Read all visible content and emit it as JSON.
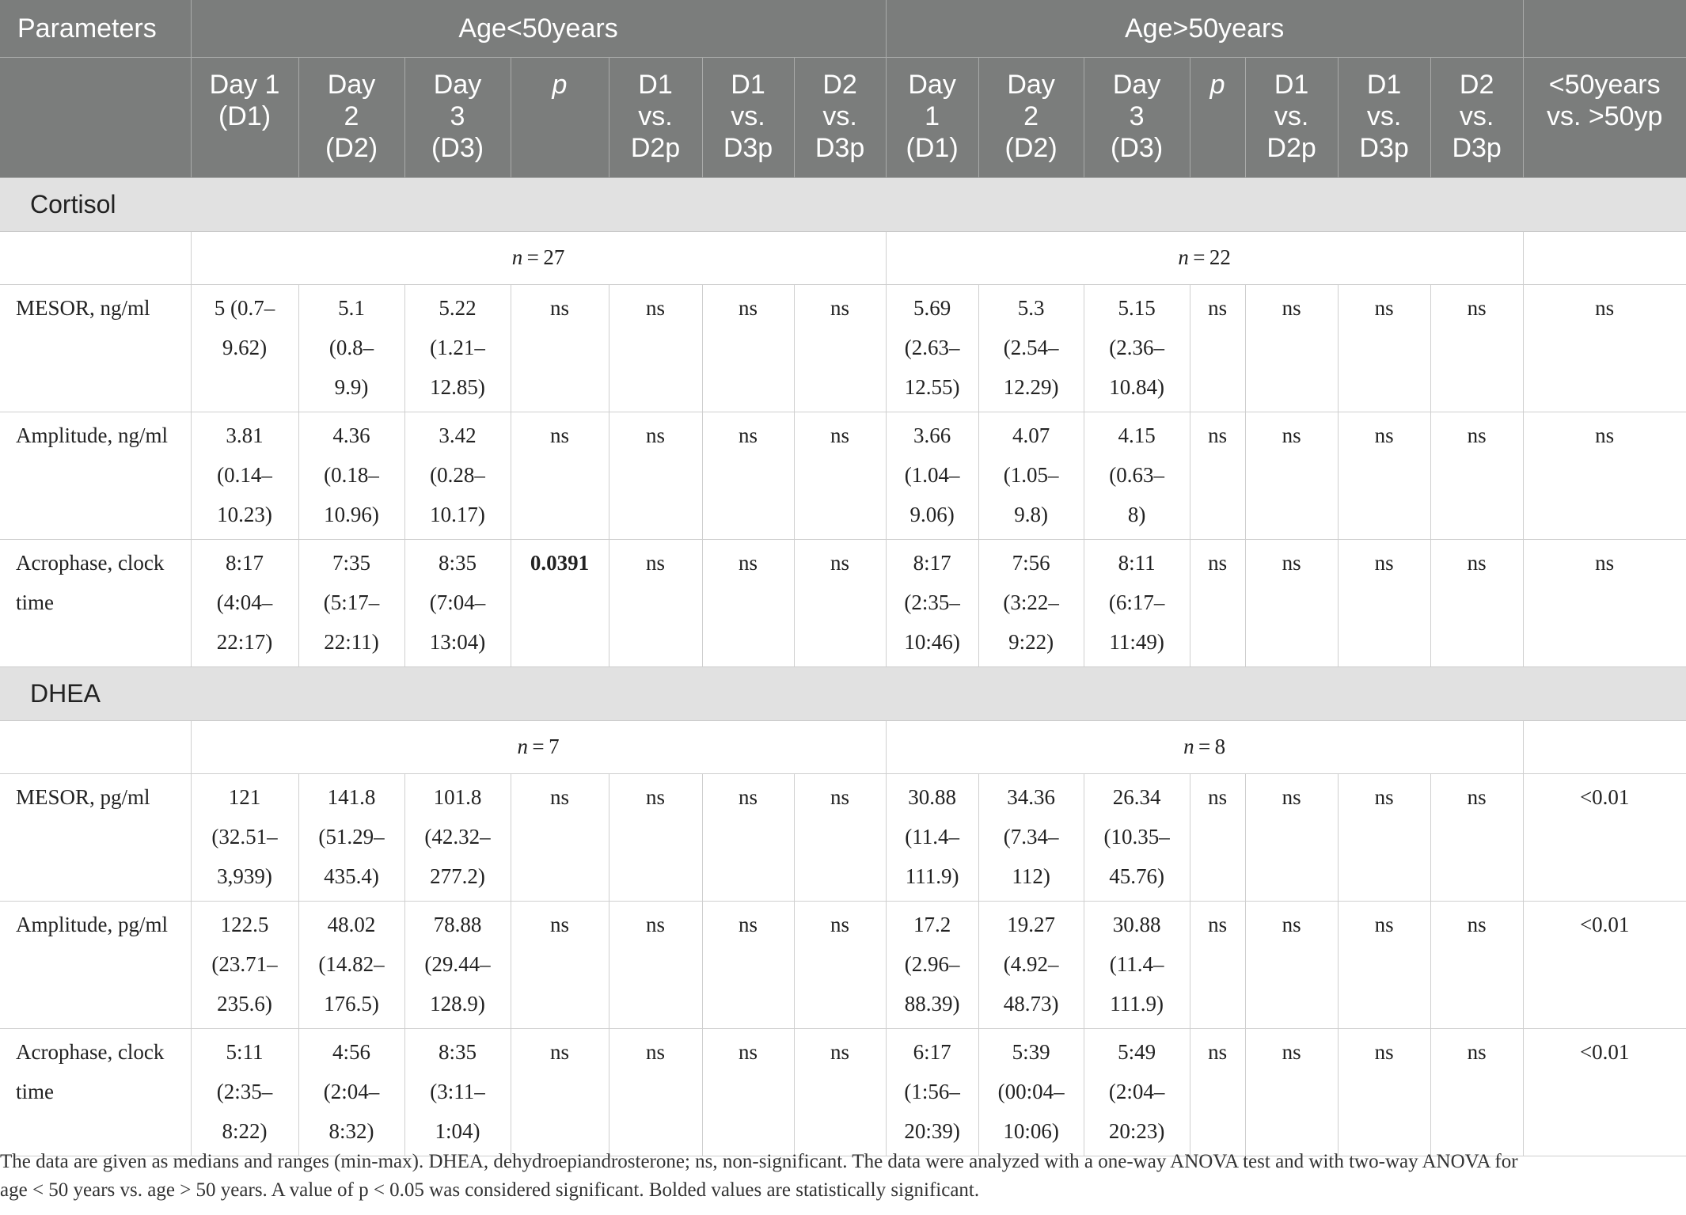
{
  "header": {
    "parameters": "Parameters",
    "group_under50": "Age<50years",
    "group_over50": "Age>50years",
    "sub_under50": [
      {
        "l1": "Day 1",
        "l2": "(D1)",
        "l3": ""
      },
      {
        "l1": "Day",
        "l2": "2",
        "l3": "(D2)"
      },
      {
        "l1": "Day",
        "l2": "3",
        "l3": "(D3)"
      },
      {
        "l1": "p",
        "l2": "",
        "l3": ""
      },
      {
        "l1": "D1",
        "l2": "vs.",
        "l3": "D2p"
      },
      {
        "l1": "D1",
        "l2": "vs.",
        "l3": "D3p"
      },
      {
        "l1": "D2",
        "l2": "vs.",
        "l3": "D3p"
      }
    ],
    "sub_over50": [
      {
        "l1": "Day",
        "l2": "1",
        "l3": "(D1)"
      },
      {
        "l1": "Day",
        "l2": "2",
        "l3": "(D2)"
      },
      {
        "l1": "Day",
        "l2": "3",
        "l3": "(D3)"
      },
      {
        "l1": "p",
        "l2": "",
        "l3": ""
      },
      {
        "l1": "D1",
        "l2": "vs.",
        "l3": "D2p"
      },
      {
        "l1": "D1",
        "l2": "vs.",
        "l3": "D3p"
      },
      {
        "l1": "D2",
        "l2": "vs.",
        "l3": "D3p"
      }
    ],
    "compare": {
      "l1": "<50years",
      "l2": "vs. >50yp"
    }
  },
  "sections": [
    {
      "name": "Cortisol",
      "n_under": "27",
      "n_over": "22",
      "rows": [
        {
          "label": "MESOR, ng/ml",
          "cells": [
            [
              "5 (0.7–",
              "9.62)"
            ],
            [
              "5.1",
              "(0.8–",
              "9.9)"
            ],
            [
              "5.22",
              "(1.21–",
              "12.85)"
            ],
            [
              "ns"
            ],
            [
              "ns"
            ],
            [
              "ns"
            ],
            [
              "ns"
            ],
            [
              "5.69",
              "(2.63–",
              "12.55)"
            ],
            [
              "5.3",
              "(2.54–",
              "12.29)"
            ],
            [
              "5.15",
              "(2.36–",
              "10.84)"
            ],
            [
              "ns"
            ],
            [
              "ns"
            ],
            [
              "ns"
            ],
            [
              "ns"
            ],
            [
              "ns"
            ]
          ]
        },
        {
          "label": "Amplitude, ng/ml",
          "cells": [
            [
              "3.81",
              "(0.14–",
              "10.23)"
            ],
            [
              "4.36",
              "(0.18–",
              "10.96)"
            ],
            [
              "3.42",
              "(0.28–",
              "10.17)"
            ],
            [
              "ns"
            ],
            [
              "ns"
            ],
            [
              "ns"
            ],
            [
              "ns"
            ],
            [
              "3.66",
              "(1.04–",
              "9.06)"
            ],
            [
              "4.07",
              "(1.05–",
              "9.8)"
            ],
            [
              "4.15",
              "(0.63–",
              "8)"
            ],
            [
              "ns"
            ],
            [
              "ns"
            ],
            [
              "ns"
            ],
            [
              "ns"
            ],
            [
              "ns"
            ]
          ]
        },
        {
          "label": "Acrophase, clock time",
          "cells": [
            [
              "8:17",
              "(4:04–",
              "22:17)"
            ],
            [
              "7:35",
              "(5:17–",
              "22:11)"
            ],
            [
              "8:35",
              "(7:04–",
              "13:04)"
            ],
            [
              "0.0391"
            ],
            [
              "ns"
            ],
            [
              "ns"
            ],
            [
              "ns"
            ],
            [
              "8:17",
              "(2:35–",
              "10:46)"
            ],
            [
              "7:56",
              "(3:22–",
              "9:22)"
            ],
            [
              "8:11",
              "(6:17–",
              "11:49)"
            ],
            [
              "ns"
            ],
            [
              "ns"
            ],
            [
              "ns"
            ],
            [
              "ns"
            ],
            [
              "ns"
            ]
          ]
        }
      ]
    },
    {
      "name": "DHEA",
      "n_under": "7",
      "n_over": "8",
      "rows": [
        {
          "label": "MESOR, pg/ml",
          "cells": [
            [
              "121",
              "(32.51–",
              "3,939)"
            ],
            [
              "141.8",
              "(51.29–",
              "435.4)"
            ],
            [
              "101.8",
              "(42.32–",
              "277.2)"
            ],
            [
              "ns"
            ],
            [
              "ns"
            ],
            [
              "ns"
            ],
            [
              "ns"
            ],
            [
              "30.88",
              "(11.4–",
              "111.9)"
            ],
            [
              "34.36",
              "(7.34–",
              "112)"
            ],
            [
              "26.34",
              "(10.35–",
              "45.76)"
            ],
            [
              "ns"
            ],
            [
              "ns"
            ],
            [
              "ns"
            ],
            [
              "ns"
            ],
            [
              "<0.01"
            ]
          ]
        },
        {
          "label": "Amplitude, pg/ml",
          "cells": [
            [
              "122.5",
              "(23.71–",
              "235.6)"
            ],
            [
              "48.02",
              "(14.82–",
              "176.5)"
            ],
            [
              "78.88",
              "(29.44–",
              "128.9)"
            ],
            [
              "ns"
            ],
            [
              "ns"
            ],
            [
              "ns"
            ],
            [
              "ns"
            ],
            [
              "17.2",
              "(2.96–",
              "88.39)"
            ],
            [
              "19.27",
              "(4.92–",
              "48.73)"
            ],
            [
              "30.88",
              "(11.4–",
              "111.9)"
            ],
            [
              "ns"
            ],
            [
              "ns"
            ],
            [
              "ns"
            ],
            [
              "ns"
            ],
            [
              "<0.01"
            ]
          ]
        },
        {
          "label": "Acrophase, clock time",
          "cells": [
            [
              "5:11",
              "(2:35–",
              "8:22)"
            ],
            [
              "4:56",
              "(2:04–",
              "8:32)"
            ],
            [
              "8:35",
              "(3:11–",
              "1:04)"
            ],
            [
              "ns"
            ],
            [
              "ns"
            ],
            [
              "ns"
            ],
            [
              "ns"
            ],
            [
              "6:17",
              "(1:56–",
              "20:39)"
            ],
            [
              "5:39",
              "(00:04–",
              "10:06)"
            ],
            [
              "5:49",
              "(2:04–",
              "20:23)"
            ],
            [
              "ns"
            ],
            [
              "ns"
            ],
            [
              "ns"
            ],
            [
              "ns"
            ],
            [
              "<0.01"
            ]
          ]
        }
      ]
    }
  ],
  "footnote": {
    "line1": "The data are given as medians and ranges (min-max). DHEA, dehydroepiandrosterone; ns, non-significant. The data were analyzed with a one-way ANOVA test and with two-way ANOVA for",
    "line2": "age < 50 years vs. age > 50 years. A value of p < 0.05 was considered significant. Bolded values are statistically significant."
  }
}
